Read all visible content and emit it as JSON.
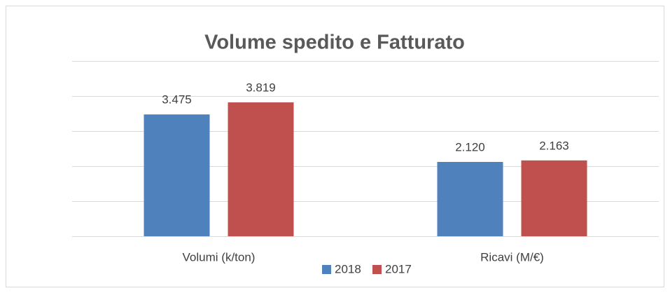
{
  "chart_data": {
    "type": "bar",
    "title": "Volume spedito e Fatturato",
    "categories": [
      "Volumi (k/ton)",
      "Ricavi (M/€)"
    ],
    "series": [
      {
        "name": "2018",
        "color": "#4f81bd",
        "values": [
          3475,
          2120
        ],
        "value_labels": [
          "3.475",
          "2.120"
        ]
      },
      {
        "name": "2017",
        "color": "#c0504d",
        "values": [
          3819,
          2163
        ],
        "value_labels": [
          "3.819",
          "2.163"
        ]
      }
    ],
    "ylim": [
      0,
      5000
    ],
    "yticks": [
      0,
      1000,
      2000,
      3000,
      4000,
      5000
    ],
    "grid": true,
    "legend": "bottom"
  }
}
